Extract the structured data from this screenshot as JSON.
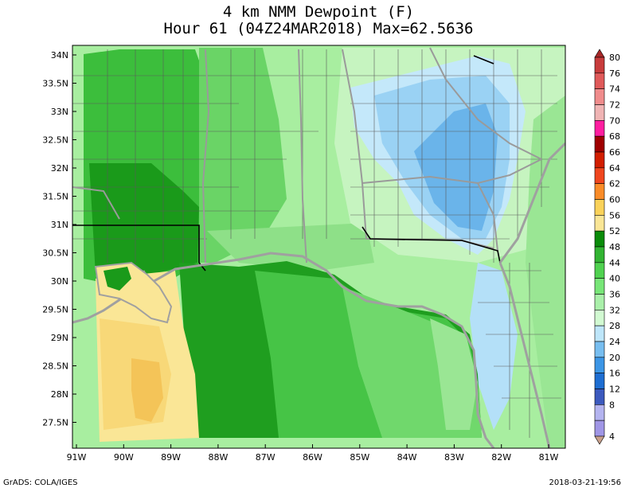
{
  "title": {
    "line1": "4 km NMM Dewpoint (F)",
    "line2": "Hour 61 (04Z24MAR2018) Max=62.5636"
  },
  "lat_labels": [
    "34N",
    "33.5N",
    "33N",
    "32.5N",
    "32N",
    "31.5N",
    "31N",
    "30.5N",
    "30N",
    "29.5N",
    "29N",
    "28.5N",
    "28N",
    "27.5N"
  ],
  "lon_labels": [
    "91W",
    "90W",
    "89W",
    "88W",
    "87W",
    "86W",
    "85W",
    "84W",
    "83W",
    "82W",
    "81W"
  ],
  "colorbar": {
    "labels": [
      "80",
      "76",
      "74",
      "72",
      "70",
      "68",
      "66",
      "64",
      "62",
      "60",
      "56",
      "52",
      "48",
      "44",
      "40",
      "36",
      "32",
      "28",
      "24",
      "20",
      "16",
      "12",
      "8",
      "4"
    ],
    "colors": [
      "#a82828",
      "#c83c3c",
      "#e05a5a",
      "#f08c8c",
      "#f0b4b4",
      "#ff1ea0",
      "#a00000",
      "#d21e00",
      "#f0461e",
      "#fa8c28",
      "#fad25a",
      "#fae696",
      "#0a8c0a",
      "#32b432",
      "#50d250",
      "#78e678",
      "#aaf0aa",
      "#d2fad2",
      "#bee6fa",
      "#78bef0",
      "#3c96e6",
      "#1e6ed2",
      "#3c5abe",
      "#b4b4f0",
      "#a096e6",
      "#8278dc",
      "#5a46c8",
      "#2d1eaa",
      "#140a82",
      "#c8a08c"
    ]
  },
  "footer": {
    "left": "GrADS: COLA/IGES",
    "right": "2018-03-21-19:56"
  }
}
